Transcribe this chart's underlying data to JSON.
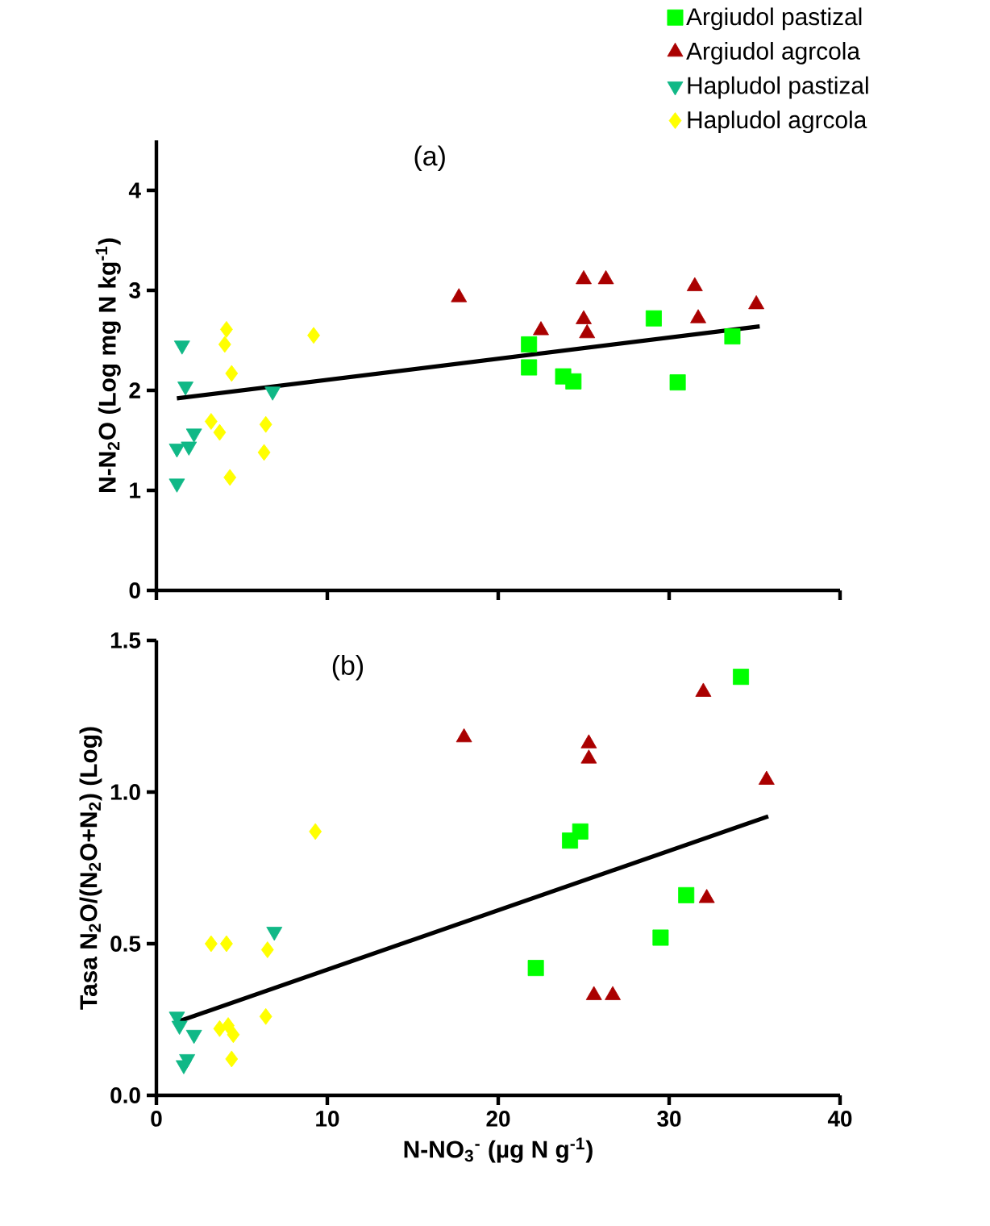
{
  "chart_data": [
    {
      "type": "scatter",
      "annotations": [
        "(a)"
      ],
      "ylabel": "N-N$_{2}$O (Log mg N kg$^{-1}$)",
      "xlim": [
        0,
        40
      ],
      "xticks": [
        0,
        10,
        20,
        30,
        40
      ],
      "ylim": [
        0,
        4.5
      ],
      "yticks": [
        0,
        1,
        2,
        3,
        4
      ],
      "tick_labels": "y",
      "legend": "top right",
      "series": [
        {
          "name": "Argiudol pastizal",
          "color": "#00ff00",
          "marker": "square",
          "x": [
            21.8,
            21.8,
            23.8,
            24.4,
            29.1,
            30.5,
            33.7
          ],
          "values": [
            2.46,
            2.23,
            2.14,
            2.09,
            2.72,
            2.08,
            2.54
          ]
        },
        {
          "name": "Argiudol agrcola",
          "color": "#aa0000",
          "marker": "triangle",
          "x": [
            17.7,
            22.5,
            25.0,
            26.3,
            25.0,
            25.2,
            31.5,
            31.7,
            35.1
          ],
          "values": [
            2.93,
            2.6,
            3.11,
            3.11,
            2.71,
            2.57,
            3.04,
            2.72,
            2.86
          ]
        },
        {
          "name": "Hapludol pastizal",
          "color": "#10b886",
          "marker": "triangle-down",
          "x": [
            1.2,
            1.2,
            1.9,
            2.2,
            1.5,
            1.7,
            6.8
          ],
          "values": [
            1.07,
            1.42,
            1.44,
            1.57,
            2.45,
            2.04,
            1.99
          ]
        },
        {
          "name": "Hapludol agrcola",
          "color": "#ffff00",
          "marker": "diamond",
          "x": [
            3.2,
            3.7,
            4.1,
            4.0,
            4.4,
            4.3,
            6.4,
            6.3,
            9.2
          ],
          "values": [
            1.69,
            1.58,
            2.61,
            2.46,
            2.17,
            1.13,
            1.66,
            1.38,
            2.55
          ]
        },
        {
          "type": "line",
          "color": "#000000",
          "marker": "none",
          "x": [
            1.2,
            35.3
          ],
          "values": [
            1.92,
            2.64
          ]
        }
      ]
    },
    {
      "type": "scatter",
      "annotations": [
        "(b)"
      ],
      "ylabel": "Tasa N$_{2}$O/(N$_{2}$O+N$_{2}$) (Log)",
      "xlabel": "N-NO$_{3}$$^{-}$ (µg N g$^{-1}$)",
      "xlim": [
        0,
        40
      ],
      "xticks": [
        0,
        10,
        20,
        30,
        40
      ],
      "ylim": [
        0,
        1.5
      ],
      "yticks": [
        {
          "value": 0,
          "label": "0.0"
        },
        {
          "value": 0.5,
          "label": "0.5"
        },
        {
          "value": 1,
          "label": "1.0"
        },
        {
          "value": 1.5,
          "label": "1.5"
        }
      ],
      "series": [
        {
          "color": "#00ff00",
          "marker": "square",
          "x": [
            34.2,
            24.2,
            24.8,
            31.0,
            29.5,
            22.2
          ],
          "values": [
            1.38,
            0.84,
            0.87,
            0.66,
            0.52,
            0.42
          ]
        },
        {
          "color": "#aa0000",
          "marker": "triangle",
          "x": [
            18.0,
            25.3,
            25.3,
            32.0,
            35.7,
            32.2,
            25.6,
            26.7
          ],
          "values": [
            1.18,
            1.16,
            1.11,
            1.33,
            1.04,
            0.65,
            0.33,
            0.33
          ]
        },
        {
          "color": "#10b886",
          "marker": "triangle-down",
          "x": [
            6.9,
            1.2,
            1.35,
            2.2,
            1.8,
            1.6
          ],
          "values": [
            0.54,
            0.26,
            0.23,
            0.2,
            0.12,
            0.1
          ]
        },
        {
          "color": "#ffff00",
          "marker": "diamond",
          "x": [
            3.2,
            4.1,
            6.5,
            9.3,
            6.4,
            3.7,
            4.2,
            4.5,
            4.4
          ],
          "values": [
            0.5,
            0.5,
            0.48,
            0.87,
            0.26,
            0.22,
            0.23,
            0.2,
            0.12
          ]
        },
        {
          "type": "line",
          "color": "#000000",
          "marker": "none",
          "x": [
            1.1,
            35.8
          ],
          "values": [
            0.24,
            0.92
          ]
        }
      ]
    }
  ]
}
